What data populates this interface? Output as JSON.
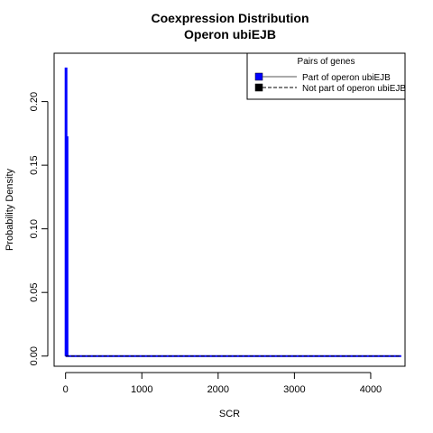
{
  "chart_data": {
    "type": "line",
    "title": "Coexpression Distribution",
    "subtitle": "Operon ubiEJB",
    "xlabel": "SCR",
    "ylabel": "Probability Density",
    "xlim": [
      -150,
      4450
    ],
    "ylim": [
      -0.008,
      0.238
    ],
    "xticks": [
      0,
      1000,
      2000,
      3000,
      4000
    ],
    "xtick_labels": [
      "0",
      "1000",
      "2000",
      "3000",
      "4000"
    ],
    "yticks": [
      0.0,
      0.05,
      0.1,
      0.15,
      0.2
    ],
    "ytick_labels": [
      "0.00",
      "0.05",
      "0.10",
      "0.15",
      "0.20"
    ],
    "grid": false,
    "legend": {
      "title": "Pairs of genes",
      "placement": "top-right",
      "entries": [
        "Part of operon ubiEJB",
        "Not part of operon ubiEJB"
      ]
    },
    "series": [
      {
        "name": "Part of operon ubiEJB",
        "color": "#0000ff",
        "style": "solid",
        "x": [
          0,
          0,
          12,
          12,
          16,
          16,
          25,
          25,
          4400
        ],
        "y": [
          0,
          0.226,
          0.226,
          0,
          0,
          0.172,
          0.172,
          0,
          0
        ]
      },
      {
        "name": "Not part of operon ubiEJB",
        "color": "#000000",
        "style": "dashed",
        "x": [
          0,
          4400
        ],
        "y": [
          0,
          0
        ]
      }
    ]
  }
}
